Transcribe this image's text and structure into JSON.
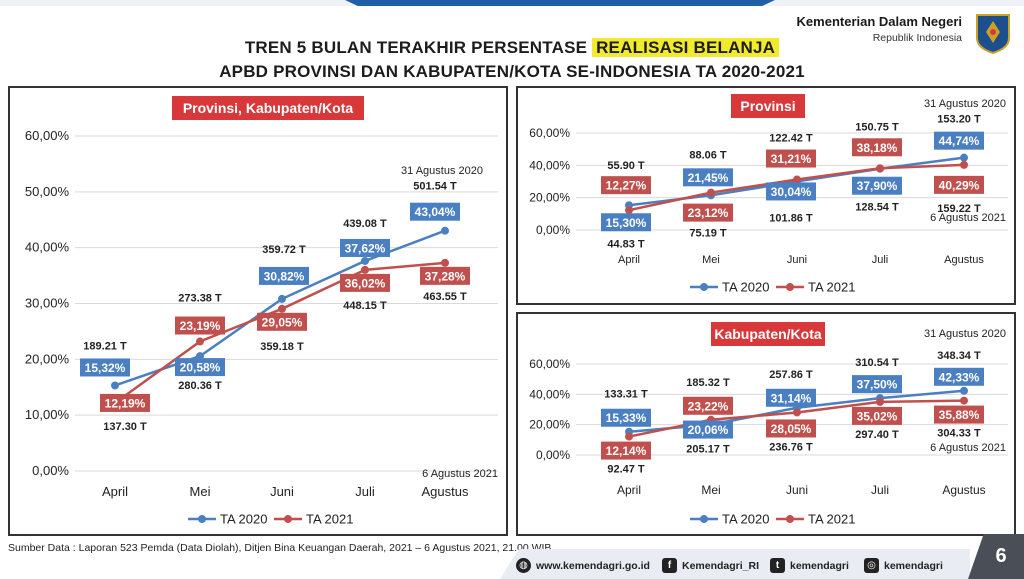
{
  "header": {
    "ministry_name": "Kementerian Dalam Negeri",
    "ministry_sub": "Republik Indonesia",
    "title_line1_pre": "TREN 5 BULAN TERAKHIR PERSENTASE ",
    "title_line1_highlight": "REALISASI BELANJA",
    "title_line2": "APBD PROVINSI DAN KABUPATEN/KOTA SE-INDONESIA TA 2020-2021"
  },
  "colors": {
    "ta2020": "#4a7fc1",
    "ta2021": "#c0504d",
    "title_box": "#d9383a",
    "highlight": "#f2ea2d"
  },
  "chart_data": [
    {
      "id": "gabungan",
      "type": "line",
      "title": "Provinsi, Kabupaten/Kota",
      "categories": [
        "April",
        "Mei",
        "Juni",
        "Juli",
        "Agustus"
      ],
      "ylim": [
        0,
        60
      ],
      "yticks": [
        "0,00%",
        "10,00%",
        "20,00%",
        "30,00%",
        "40,00%",
        "50,00%",
        "60,00%"
      ],
      "series": [
        {
          "name": "TA 2020",
          "values": [
            15.32,
            20.58,
            30.82,
            37.62,
            43.04
          ],
          "labels": [
            "15,32%",
            "20,58%",
            "30,82%",
            "37,62%",
            "43,04%"
          ],
          "amounts": [
            "189.21 T",
            "280.36 T",
            "359.72 T",
            "439.08 T",
            "501.54 T"
          ]
        },
        {
          "name": "TA 2021",
          "values": [
            12.19,
            23.19,
            29.05,
            36.02,
            37.28
          ],
          "labels": [
            "12,19%",
            "23,19%",
            "29,05%",
            "36,02%",
            "37,28%"
          ],
          "amounts": [
            "137.30 T",
            "273.38 T",
            "359.18 T",
            "448.15 T",
            "463.55 T"
          ]
        }
      ],
      "notes": [
        "31 Agustus 2020",
        "6 Agustus 2021"
      ],
      "legend": "bottom"
    },
    {
      "id": "provinsi",
      "type": "line",
      "title": "Provinsi",
      "categories": [
        "April",
        "Mei",
        "Juni",
        "Juli",
        "Agustus"
      ],
      "ylim": [
        0,
        60
      ],
      "yticks": [
        "0,00%",
        "20,00%",
        "40,00%",
        "60,00%"
      ],
      "series": [
        {
          "name": "TA 2020",
          "values": [
            15.3,
            21.45,
            30.04,
            37.9,
            44.74
          ],
          "labels": [
            "15,30%",
            "21,45%",
            "30,04%",
            "37,90%",
            "44,74%"
          ],
          "amounts": [
            "44.83 T",
            "88.06 T",
            "101.86 T",
            "128.54 T",
            "153.20 T"
          ]
        },
        {
          "name": "TA 2021",
          "values": [
            12.27,
            23.12,
            31.21,
            38.18,
            40.29
          ],
          "labels": [
            "12,27%",
            "23,12%",
            "31,21%",
            "38,18%",
            "40,29%"
          ],
          "amounts": [
            "55.90 T",
            "75.19 T",
            "122.42 T",
            "150.75 T",
            "159.22 T"
          ]
        }
      ],
      "notes": [
        "31 Agustus 2020",
        "6 Agustus 2021"
      ],
      "legend": "bottom"
    },
    {
      "id": "kabkota",
      "type": "line",
      "title": "Kabupaten/Kota",
      "categories": [
        "April",
        "Mei",
        "Juni",
        "Juli",
        "Agustus"
      ],
      "ylim": [
        0,
        60
      ],
      "yticks": [
        "0,00%",
        "20,00%",
        "40,00%",
        "60,00%"
      ],
      "series": [
        {
          "name": "TA 2020",
          "values": [
            15.33,
            20.06,
            31.14,
            37.5,
            42.33
          ],
          "labels": [
            "15,33%",
            "20,06%",
            "31,14%",
            "37,50%",
            "42,33%"
          ],
          "amounts": [
            "133.31 T",
            "205.17 T",
            "257.86 T",
            "310.54 T",
            "348.34 T"
          ]
        },
        {
          "name": "TA 2021",
          "values": [
            12.14,
            23.22,
            28.05,
            35.02,
            35.88
          ],
          "labels": [
            "12,14%",
            "23,22%",
            "28,05%",
            "35,02%",
            "35,88%"
          ],
          "amounts": [
            "92.47 T",
            "185.32 T",
            "236.76 T",
            "297.40 T",
            "304.33 T"
          ]
        }
      ],
      "notes": [
        "31 Agustus 2020",
        "6 Agustus 2021"
      ],
      "legend": "bottom"
    }
  ],
  "footer": {
    "source": "Sumber Data : Laporan 523 Pemda (Data Diolah), Ditjen Bina Keuangan Daerah, 2021 – 6 Agustus 2021, 21.00 WIB.",
    "website": "www.kemendagri.go.id",
    "facebook": "Kemendagri_RI",
    "twitter": "kemendagri",
    "instagram": "kemendagri",
    "page_number": "6"
  }
}
